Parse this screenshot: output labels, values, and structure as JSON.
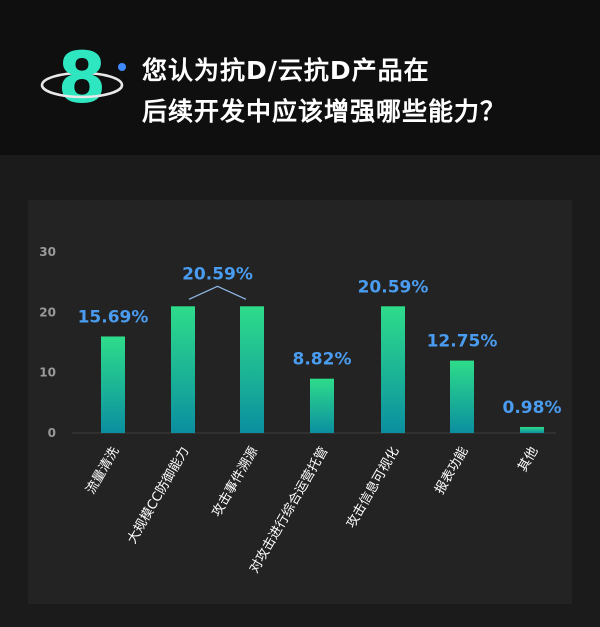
{
  "header": {
    "number": "8",
    "title_line1": "您认为抗D/云抗D产品在",
    "title_line2": "后续开发中应该增强哪些能力？"
  },
  "colors": {
    "bar_top": "#2edc8a",
    "bar_bottom": "#0b8fa0",
    "label": "#4a9cf0",
    "badge": "#2ee6c0"
  },
  "chart_data": {
    "type": "bar",
    "categories": [
      "流量清洗",
      "大规模CC防御能力",
      "攻击事件溯源",
      "对攻击进行综合运营托管",
      "攻击信息可视化",
      "报表功能",
      "其他"
    ],
    "values": [
      16,
      21,
      21,
      9,
      21,
      12,
      1
    ],
    "data_labels": [
      {
        "text": "15.69%",
        "bars": [
          0
        ]
      },
      {
        "text": "20.59%",
        "bars": [
          1,
          2
        ]
      },
      {
        "text": "8.82%",
        "bars": [
          3
        ]
      },
      {
        "text": "20.59%",
        "bars": [
          4
        ]
      },
      {
        "text": "12.75%",
        "bars": [
          5
        ]
      },
      {
        "text": "0.98%",
        "bars": [
          6
        ]
      }
    ],
    "yticks": [
      "0",
      "10",
      "20",
      "30"
    ],
    "ylim": [
      0,
      30
    ],
    "grid": false,
    "legend": "none"
  }
}
